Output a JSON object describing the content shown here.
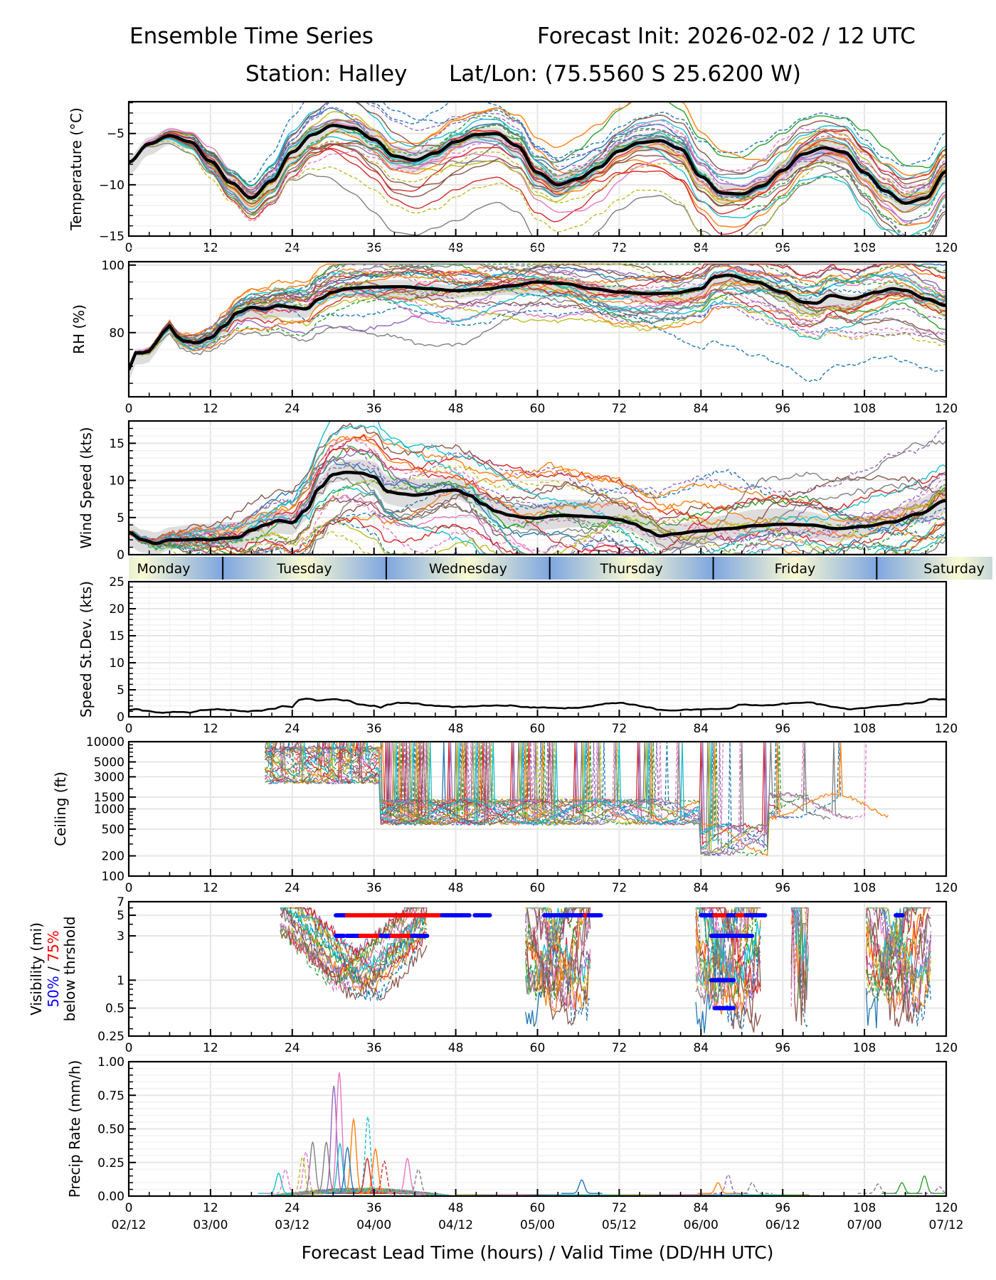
{
  "header": {
    "title_left": "Ensemble Time Series",
    "title_right": "Forecast Init: 2026-02-02 / 12 UTC",
    "station": "Station: Halley",
    "latlon": "Lat/Lon: (75.5560 S 25.6200 W)"
  },
  "colors": {
    "mean": "#000000",
    "spread_fill": "#d9d9d9",
    "grid": "#e6e6e6",
    "threshold_50": "#0000ff",
    "threshold_75": "#ff0000",
    "day_band_light": "#fafad2",
    "day_band_dark": "#7ea6e0",
    "member_palette": [
      "#1f77b4",
      "#ff7f0e",
      "#2ca02c",
      "#d62728",
      "#9467bd",
      "#8c564b",
      "#e377c2",
      "#7f7f7f",
      "#bcbd22",
      "#17becf"
    ]
  },
  "x_axis": {
    "lead_ticks": [
      0,
      12,
      24,
      36,
      48,
      60,
      72,
      84,
      96,
      108,
      120
    ],
    "valid_ticks": [
      "02/12",
      "03/00",
      "03/12",
      "04/00",
      "04/12",
      "05/00",
      "05/12",
      "06/00",
      "06/12",
      "07/00",
      "07/12"
    ],
    "label": "Forecast Lead Time (hours) / Valid Time (DD/HH UTC)",
    "range": [
      0,
      120
    ]
  },
  "day_band": {
    "days": [
      {
        "name": "Monday",
        "start": -10.2,
        "end": 13.8
      },
      {
        "name": "Tuesday",
        "start": 13.8,
        "end": 37.8
      },
      {
        "name": "Wednesday",
        "start": 37.8,
        "end": 61.8
      },
      {
        "name": "Thursday",
        "start": 61.8,
        "end": 85.8
      },
      {
        "name": "Friday",
        "start": 85.8,
        "end": 109.8
      },
      {
        "name": "Saturday",
        "start": 109.8,
        "end": 133.8
      }
    ]
  },
  "chart_data": [
    {
      "id": "temperature",
      "type": "line",
      "ylabel": "Temperature (°C)",
      "ylim": [
        -15,
        -1.9
      ],
      "yscale": "linear",
      "yticks": [
        -15,
        -10,
        -5
      ],
      "ytick_labels": [
        "−15",
        "−10",
        "−5"
      ],
      "minor_step": 1,
      "members": 30,
      "member_spread": 0.9,
      "mean": {
        "x": [
          0,
          3,
          6,
          9,
          12,
          15,
          18,
          21,
          24,
          27,
          30,
          33,
          36,
          39,
          42,
          45,
          48,
          51,
          54,
          57,
          60,
          63,
          66,
          69,
          72,
          75,
          78,
          81,
          84,
          87,
          90,
          93,
          96,
          99,
          102,
          105,
          108,
          111,
          114,
          117,
          120
        ],
        "y": [
          -7.8,
          -6.0,
          -5.2,
          -5.8,
          -7.7,
          -9.8,
          -11.3,
          -9.6,
          -6.8,
          -5.1,
          -4.2,
          -4.5,
          -5.6,
          -7.2,
          -7.6,
          -6.9,
          -5.8,
          -5.1,
          -5.0,
          -6.2,
          -8.8,
          -10.0,
          -9.4,
          -8.3,
          -6.7,
          -5.9,
          -5.7,
          -6.5,
          -9.2,
          -10.8,
          -10.9,
          -10.1,
          -8.6,
          -7.0,
          -6.4,
          -6.8,
          -8.8,
          -10.6,
          -11.8,
          -11.3,
          -8.7
        ]
      },
      "spread_band": {
        "lower_offset": 1.2,
        "upper_offset": 1.0
      }
    },
    {
      "id": "rh",
      "type": "line",
      "ylabel": "RH (%)",
      "ylim": [
        61,
        101
      ],
      "yscale": "linear",
      "yticks": [
        80,
        100
      ],
      "ytick_labels": [
        "80",
        "100"
      ],
      "minor_step": 5,
      "members": 30,
      "member_spread": 2.8,
      "mean": {
        "x": [
          0,
          1,
          2,
          3,
          4,
          5,
          6,
          7,
          8,
          10,
          12,
          14,
          16,
          18,
          20,
          22,
          24,
          26,
          28,
          30,
          32,
          34,
          36,
          40,
          44,
          48,
          52,
          56,
          60,
          64,
          68,
          72,
          76,
          80,
          84,
          86,
          88,
          92,
          96,
          99,
          101,
          103,
          106,
          110,
          112,
          114,
          117,
          120
        ],
        "y": [
          69,
          74,
          74,
          74.5,
          77,
          80,
          82,
          79,
          77.5,
          77,
          78.5,
          82,
          86,
          87.5,
          87,
          88,
          87.5,
          87,
          90,
          92,
          93,
          93.3,
          93.5,
          93.6,
          93.0,
          92.4,
          92.8,
          93.8,
          95,
          94.5,
          93,
          92,
          91.5,
          91.7,
          93,
          96.5,
          97,
          95,
          92,
          89,
          88.7,
          91,
          90,
          92,
          93,
          92.5,
          90,
          88
        ]
      },
      "spread_band": {
        "lower_offset": 3.5,
        "upper_offset": 2.0
      }
    },
    {
      "id": "wind_speed",
      "type": "line",
      "ylabel": "Wind Speed (kts)",
      "ylim": [
        0,
        18
      ],
      "yscale": "linear",
      "yticks": [
        0,
        5,
        10,
        15
      ],
      "ytick_labels": [
        "0",
        "5",
        "10",
        "15"
      ],
      "minor_step": 1,
      "members": 30,
      "member_spread": 2.0,
      "mean": {
        "x": [
          0,
          2,
          4,
          6,
          8,
          10,
          12,
          14,
          16,
          18,
          20,
          22,
          24,
          26,
          28,
          30,
          32,
          34,
          36,
          38,
          40,
          42,
          44,
          46,
          48,
          50,
          52,
          54,
          56,
          58,
          60,
          62,
          64,
          66,
          68,
          70,
          72,
          74,
          76,
          78,
          80,
          84,
          88,
          92,
          96,
          100,
          104,
          108,
          112,
          116,
          120
        ],
        "y": [
          3.0,
          2.0,
          1.5,
          2.0,
          2.0,
          2.1,
          2.0,
          2.2,
          2.3,
          3.3,
          4.0,
          4.6,
          4.3,
          6.0,
          9.0,
          10.8,
          11.1,
          11.0,
          10.5,
          8.5,
          8.2,
          8.0,
          8.2,
          8.6,
          8.7,
          8.0,
          6.8,
          5.8,
          5.3,
          5.0,
          4.9,
          5.2,
          5.3,
          5.2,
          5.1,
          5.0,
          4.7,
          4.2,
          3.3,
          2.5,
          2.8,
          3.2,
          3.5,
          3.9,
          4.1,
          4.0,
          3.5,
          3.8,
          4.4,
          5.5,
          7.3
        ]
      },
      "spread_band": {
        "lower_offset": 1.8,
        "upper_offset": 2.2
      }
    },
    {
      "id": "speed_stdev",
      "type": "line",
      "ylabel": "Speed St.Dev. (kts)",
      "ylim": [
        0,
        25
      ],
      "yscale": "linear",
      "yticks": [
        0,
        5,
        10,
        15,
        20,
        25
      ],
      "ytick_labels": [
        "0",
        "5",
        "10",
        "15",
        "20",
        "25"
      ],
      "minor_step": 1,
      "members": 0,
      "series": {
        "x": [
          0,
          1,
          3,
          5,
          7,
          9,
          11,
          13,
          15,
          17,
          19,
          21,
          23,
          24,
          25,
          26,
          28,
          30,
          32,
          34,
          36,
          37,
          38,
          40,
          42,
          44,
          46,
          48,
          50,
          52,
          54,
          56,
          58,
          60,
          62,
          64,
          66,
          68,
          70,
          72,
          74,
          76,
          78,
          80,
          82,
          84,
          86,
          88,
          90,
          92,
          94,
          96,
          98,
          100,
          102,
          104,
          106,
          108,
          110,
          112,
          114,
          116,
          118,
          120
        ],
        "y": [
          1.2,
          1.4,
          1.0,
          0.8,
          0.9,
          0.8,
          1.3,
          1.4,
          1.2,
          1.0,
          1.1,
          1.5,
          2.0,
          1.8,
          3.2,
          3.4,
          3.0,
          3.3,
          3.0,
          2.2,
          2.0,
          1.7,
          2.3,
          2.6,
          2.5,
          2.1,
          2.0,
          1.8,
          1.9,
          2.0,
          2.1,
          2.1,
          1.8,
          1.7,
          1.7,
          1.6,
          1.7,
          2.0,
          2.4,
          2.6,
          2.3,
          1.8,
          1.3,
          1.2,
          1.3,
          1.4,
          1.5,
          1.5,
          2.3,
          2.1,
          2.1,
          2.4,
          2.6,
          2.6,
          2.2,
          1.7,
          1.4,
          1.6,
          1.9,
          2.1,
          2.4,
          2.6,
          3.3,
          3.2
        ]
      }
    },
    {
      "id": "ceiling",
      "type": "line",
      "ylabel": "Ceiling (ft)",
      "ylim": [
        100,
        10000
      ],
      "yscale": "log",
      "yticks": [
        100,
        200,
        500,
        1000,
        1500,
        3000,
        5000,
        10000
      ],
      "ytick_labels": [
        "100",
        "200",
        "500",
        "1000",
        "1500",
        "3000",
        "5000",
        "10000"
      ],
      "members": 30,
      "regimes": [
        {
          "start": 20,
          "end": 37,
          "base": 4500,
          "depth": 0.6
        },
        {
          "start": 37,
          "end": 86,
          "base": 900,
          "depth": 0.4
        },
        {
          "start": 84,
          "end": 94,
          "base": 350,
          "depth": 0.5
        },
        {
          "start": 94,
          "end": 120,
          "base": 1100,
          "depth": 0.4
        }
      ]
    },
    {
      "id": "visibility",
      "type": "line",
      "ylabel": "Visibility (mi)",
      "ylabel_50": "50%",
      "ylabel_sep": " / ",
      "ylabel_75": "75%",
      "ylabel_sub": "below thrshold",
      "ylim": [
        0.25,
        7
      ],
      "yscale": "log",
      "yticks": [
        0.25,
        0.5,
        1,
        3,
        5,
        7
      ],
      "ytick_labels": [
        "0.25",
        "0.5",
        "1",
        "3",
        "5",
        "7"
      ],
      "members": 30,
      "threshold_segments": [
        {
          "level": 5,
          "pct": 50,
          "start": 30.4,
          "end": 32.0
        },
        {
          "level": 5,
          "pct": 75,
          "start": 32.0,
          "end": 46.0
        },
        {
          "level": 5,
          "pct": 50,
          "start": 46.0,
          "end": 50.0
        },
        {
          "level": 5,
          "pct": 50,
          "start": 50.8,
          "end": 53.0
        },
        {
          "level": 5,
          "pct": 50,
          "start": 61.0,
          "end": 67.0
        },
        {
          "level": 5,
          "pct": 75,
          "start": 67.0,
          "end": 67.5
        },
        {
          "level": 5,
          "pct": 50,
          "start": 67.5,
          "end": 69.3
        },
        {
          "level": 5,
          "pct": 50,
          "start": 84.0,
          "end": 86.0
        },
        {
          "level": 5,
          "pct": 75,
          "start": 86.0,
          "end": 88.0
        },
        {
          "level": 5,
          "pct": 50,
          "start": 88.0,
          "end": 89.3
        },
        {
          "level": 5,
          "pct": 75,
          "start": 89.3,
          "end": 90.6
        },
        {
          "level": 5,
          "pct": 50,
          "start": 90.6,
          "end": 93.4
        },
        {
          "level": 5,
          "pct": 50,
          "start": 112.6,
          "end": 113.6
        },
        {
          "level": 3,
          "pct": 50,
          "start": 30.4,
          "end": 31.6
        },
        {
          "level": 3,
          "pct": 50,
          "start": 32.0,
          "end": 34.0
        },
        {
          "level": 3,
          "pct": 75,
          "start": 34.0,
          "end": 37.0
        },
        {
          "level": 3,
          "pct": 50,
          "start": 37.0,
          "end": 38.6
        },
        {
          "level": 3,
          "pct": 75,
          "start": 38.6,
          "end": 41.6
        },
        {
          "level": 3,
          "pct": 50,
          "start": 41.6,
          "end": 43.8
        },
        {
          "level": 3,
          "pct": 50,
          "start": 85.5,
          "end": 91.5
        },
        {
          "level": 1,
          "pct": 50,
          "start": 85.5,
          "end": 88.8
        },
        {
          "level": 0.5,
          "pct": 50,
          "start": 86.0,
          "end": 88.8
        }
      ]
    },
    {
      "id": "precip",
      "type": "line",
      "ylabel": "Precip Rate (mm/h)",
      "ylim": [
        0,
        1.0
      ],
      "yscale": "linear",
      "yticks": [
        0,
        0.25,
        0.5,
        0.75,
        1.0
      ],
      "ytick_labels": [
        "0.00",
        "0.25",
        "0.50",
        "0.75",
        "1.00"
      ],
      "minor_step": 0.05,
      "members": 30,
      "peaks": [
        {
          "x": 30.1,
          "y": 0.8,
          "member": 4
        },
        {
          "x": 30.9,
          "y": 0.9,
          "member": 6
        },
        {
          "x": 33.0,
          "y": 0.55,
          "member": 1
        },
        {
          "x": 35.1,
          "y": 0.57,
          "member": 9,
          "dashed": true
        },
        {
          "x": 27.0,
          "y": 0.38,
          "member": 7
        },
        {
          "x": 29.0,
          "y": 0.38,
          "member": 7
        },
        {
          "x": 31.0,
          "y": 0.37,
          "member": 9
        },
        {
          "x": 32.1,
          "y": 0.34,
          "member": 0
        },
        {
          "x": 26.0,
          "y": 0.31,
          "member": 6,
          "dashed": true
        },
        {
          "x": 25.5,
          "y": 0.27,
          "member": 8,
          "dashed": true
        },
        {
          "x": 36.2,
          "y": 0.33,
          "member": 1
        },
        {
          "x": 40.9,
          "y": 0.26,
          "member": 6
        },
        {
          "x": 22.0,
          "y": 0.15,
          "member": 9
        },
        {
          "x": 23.0,
          "y": 0.18,
          "member": 6,
          "dashed": true
        },
        {
          "x": 35.0,
          "y": 0.26,
          "member": 3
        },
        {
          "x": 37.5,
          "y": 0.24,
          "member": 3,
          "dashed": true
        },
        {
          "x": 42.5,
          "y": 0.18,
          "member": 7,
          "dashed": true
        },
        {
          "x": 66.5,
          "y": 0.1,
          "member": 0
        },
        {
          "x": 88.0,
          "y": 0.14,
          "member": 4,
          "dashed": true
        },
        {
          "x": 86.5,
          "y": 0.08,
          "member": 1
        },
        {
          "x": 91.5,
          "y": 0.08,
          "member": 7,
          "dashed": true
        },
        {
          "x": 116.8,
          "y": 0.13,
          "member": 2
        },
        {
          "x": 113.5,
          "y": 0.08,
          "member": 2
        },
        {
          "x": 110.0,
          "y": 0.07,
          "member": 7,
          "dashed": true
        },
        {
          "x": 119.0,
          "y": 0.05,
          "member": 4,
          "dashed": true
        }
      ]
    }
  ]
}
